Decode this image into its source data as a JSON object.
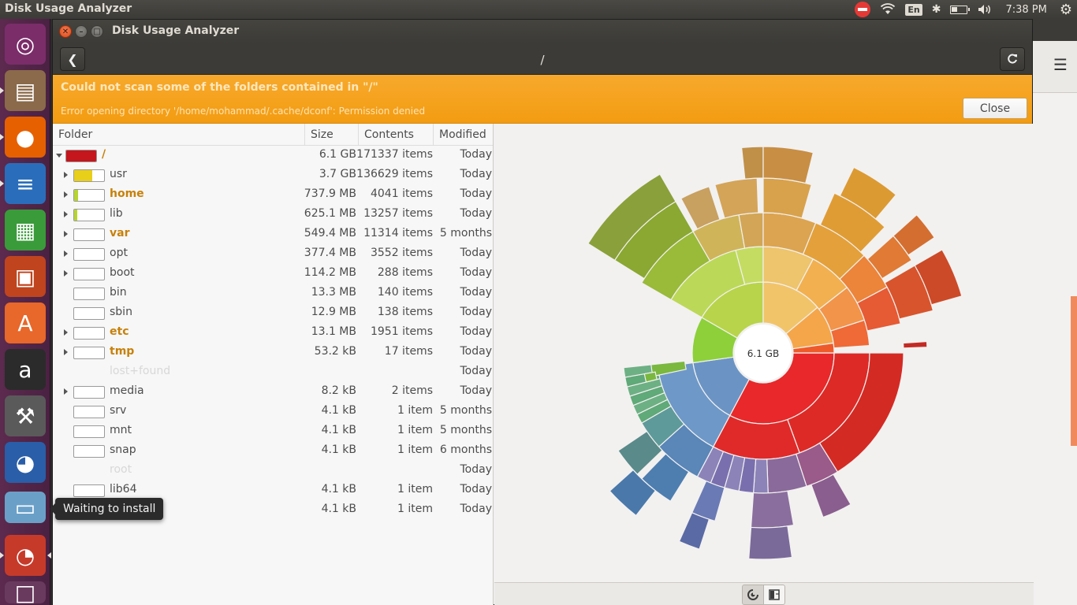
{
  "top_panel": {
    "app_title": "Disk Usage Analyzer",
    "keyboard_layout": "En",
    "clock": "7:38 PM"
  },
  "launcher": {
    "items": [
      {
        "name": "ubuntu-dash-button",
        "icon": "ubuntu-logo-icon",
        "color": "#7b2d6a"
      },
      {
        "name": "files-launcher",
        "icon": "file-cabinet-icon",
        "color": "#8a6a4a"
      },
      {
        "name": "firefox-launcher",
        "icon": "firefox-icon",
        "color": "#e66000"
      },
      {
        "name": "writer-launcher",
        "icon": "writer-document-icon",
        "color": "#2a6ebb"
      },
      {
        "name": "calc-launcher",
        "icon": "calc-spreadsheet-icon",
        "color": "#3a9b3a"
      },
      {
        "name": "impress-launcher",
        "icon": "impress-presentation-icon",
        "color": "#c0441e"
      },
      {
        "name": "software-center-launcher",
        "icon": "shopping-bag-icon",
        "color": "#e8672a"
      },
      {
        "name": "amazon-launcher",
        "icon": "amazon-icon",
        "color": "#2b2b2b"
      },
      {
        "name": "system-settings-launcher",
        "icon": "settings-wrench-icon",
        "color": "#5a5a5a"
      },
      {
        "name": "bluefish-launcher",
        "icon": "bluefish-icon",
        "color": "#2a5ea8"
      },
      {
        "name": "installing-app-launcher",
        "icon": "package-icon",
        "color": "#6aa0c8"
      },
      {
        "name": "disk-usage-launcher",
        "icon": "pie-chart-icon",
        "color": "#c63a2a"
      },
      {
        "name": "workspace-switcher-launcher",
        "icon": "workspaces-icon",
        "color": "#6a3a5e"
      }
    ],
    "tooltip": "Waiting to install"
  },
  "window": {
    "title": "Disk Usage Analyzer",
    "path": "/",
    "infobar": {
      "title": "Could not scan some of the folders contained in \"/\"",
      "detail": "Error opening directory '/home/mohammad/.cache/dconf': Permission denied",
      "close_label": "Close"
    },
    "columns": {
      "folder": "Folder",
      "size": "Size",
      "contents": "Contents",
      "modified": "Modified"
    },
    "rows": [
      {
        "name": "/",
        "size": "6.1 GB",
        "contents": "171337 items",
        "modified": "Today",
        "bold": true,
        "expander": "open",
        "fill": 1.0,
        "color": "#c4161c",
        "indent": 0
      },
      {
        "name": "usr",
        "size": "3.7 GB",
        "contents": "136629 items",
        "modified": "Today",
        "bold": false,
        "expander": "closed",
        "fill": 0.6,
        "color": "#e8cf1a",
        "indent": 1
      },
      {
        "name": "home",
        "size": "737.9 MB",
        "contents": "4041 items",
        "modified": "Today",
        "bold": true,
        "expander": "closed",
        "fill": 0.12,
        "color": "#b8d430",
        "indent": 1
      },
      {
        "name": "lib",
        "size": "625.1 MB",
        "contents": "13257 items",
        "modified": "Today",
        "bold": false,
        "expander": "closed",
        "fill": 0.1,
        "color": "#b8d430",
        "indent": 1
      },
      {
        "name": "var",
        "size": "549.4 MB",
        "contents": "11314 items",
        "modified": "5 months",
        "bold": true,
        "expander": "closed",
        "fill": 0.0,
        "color": "#b8d430",
        "indent": 1
      },
      {
        "name": "opt",
        "size": "377.4 MB",
        "contents": "3552 items",
        "modified": "Today",
        "bold": false,
        "expander": "closed",
        "fill": 0.0,
        "color": "#b8d430",
        "indent": 1
      },
      {
        "name": "boot",
        "size": "114.2 MB",
        "contents": "288 items",
        "modified": "Today",
        "bold": false,
        "expander": "closed",
        "fill": 0.0,
        "color": "#b8d430",
        "indent": 1
      },
      {
        "name": "bin",
        "size": "13.3 MB",
        "contents": "140 items",
        "modified": "Today",
        "bold": false,
        "expander": "none",
        "fill": 0.0,
        "color": "#b8d430",
        "indent": 1
      },
      {
        "name": "sbin",
        "size": "12.9 MB",
        "contents": "138 items",
        "modified": "Today",
        "bold": false,
        "expander": "none",
        "fill": 0.0,
        "color": "#b8d430",
        "indent": 1
      },
      {
        "name": "etc",
        "size": "13.1 MB",
        "contents": "1951 items",
        "modified": "Today",
        "bold": true,
        "expander": "closed",
        "fill": 0.0,
        "color": "#b8d430",
        "indent": 1
      },
      {
        "name": "tmp",
        "size": "53.2 kB",
        "contents": "17 items",
        "modified": "Today",
        "bold": true,
        "expander": "closed",
        "fill": 0.0,
        "color": "#b8d430",
        "indent": 1
      },
      {
        "name": "lost+found",
        "size": "",
        "contents": "",
        "modified": "Today",
        "bold": false,
        "expander": "none",
        "fill": -1,
        "color": "#b8d430",
        "indent": 1,
        "dim": true
      },
      {
        "name": "media",
        "size": "8.2 kB",
        "contents": "2 items",
        "modified": "Today",
        "bold": false,
        "expander": "closed",
        "fill": 0.0,
        "color": "#b8d430",
        "indent": 1
      },
      {
        "name": "srv",
        "size": "4.1 kB",
        "contents": "1 item",
        "modified": "5 months",
        "bold": false,
        "expander": "none",
        "fill": 0.0,
        "color": "#b8d430",
        "indent": 1
      },
      {
        "name": "mnt",
        "size": "4.1 kB",
        "contents": "1 item",
        "modified": "5 months",
        "bold": false,
        "expander": "none",
        "fill": 0.0,
        "color": "#b8d430",
        "indent": 1
      },
      {
        "name": "snap",
        "size": "4.1 kB",
        "contents": "1 item",
        "modified": "6 months",
        "bold": false,
        "expander": "none",
        "fill": 0.0,
        "color": "#b8d430",
        "indent": 1
      },
      {
        "name": "root",
        "size": "",
        "contents": "",
        "modified": "Today",
        "bold": false,
        "expander": "none",
        "fill": -1,
        "color": "#b8d430",
        "indent": 1,
        "dim": true
      },
      {
        "name": "lib64",
        "size": "4.1 kB",
        "contents": "1 item",
        "modified": "Today",
        "bold": false,
        "expander": "none",
        "fill": 0.0,
        "color": "#b8d430",
        "indent": 1
      },
      {
        "name": "",
        "size": "4.1 kB",
        "contents": "1 item",
        "modified": "Today",
        "bold": false,
        "expander": "none",
        "fill": -1,
        "color": "#b8d430",
        "indent": 1
      }
    ],
    "chart_center_label": "6.1 GB"
  },
  "colors": {
    "infobar": "#f39c12",
    "launcher": "#5c2a4e",
    "panel": "#3c3b37"
  }
}
